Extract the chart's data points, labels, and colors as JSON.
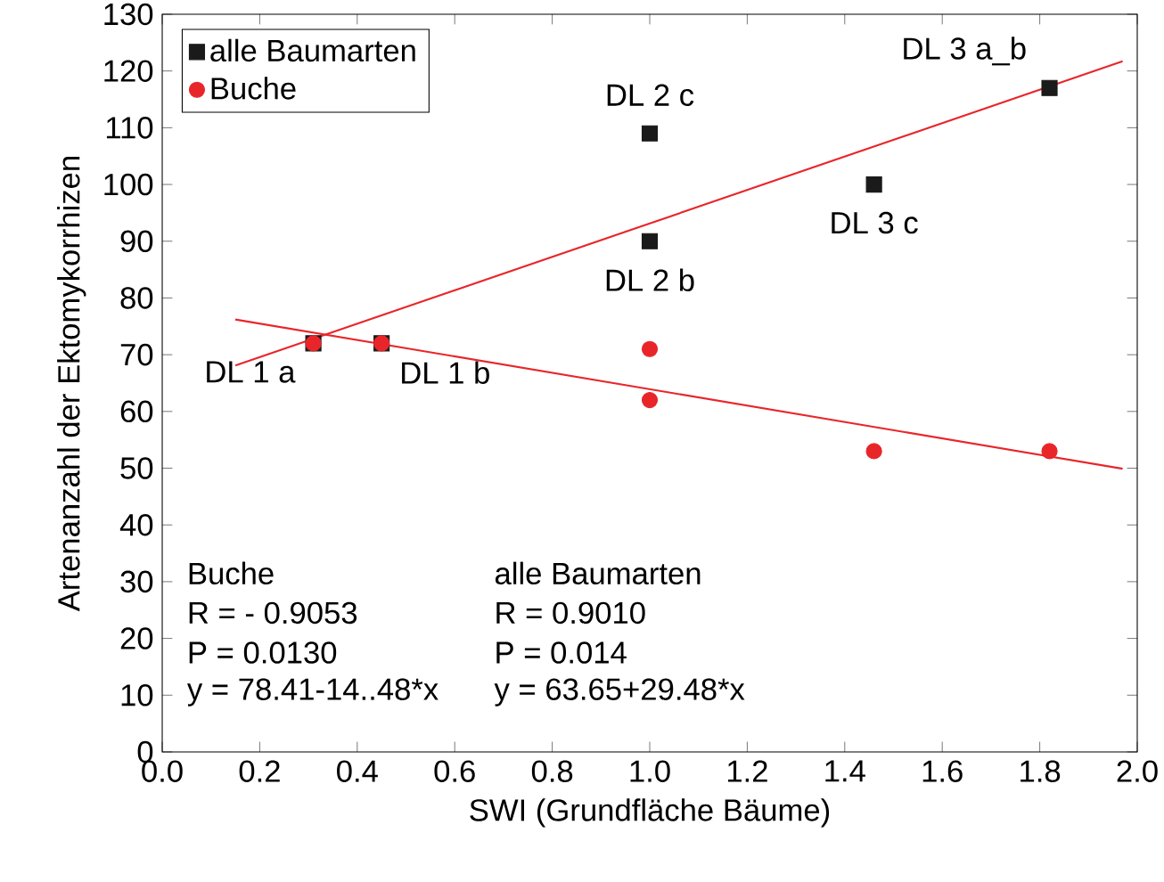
{
  "chart_data": {
    "type": "scatter",
    "xlabel": "SWI (Grundfläche Bäume)",
    "ylabel": "Artenanzahl der Ektomykorrhizen",
    "xlim": [
      0,
      2
    ],
    "ylim": [
      0,
      130
    ],
    "xticks": [
      {
        "value": 0,
        "label": "0.0"
      },
      {
        "value": 0.2,
        "label": "0.2"
      },
      {
        "value": 0.4,
        "label": "0.4"
      },
      {
        "value": 0.6,
        "label": "0.6"
      },
      {
        "value": 0.8,
        "label": "0.8"
      },
      {
        "value": 1.0,
        "label": "1.0"
      },
      {
        "value": 1.2,
        "label": "1.2"
      },
      {
        "value": 1.4,
        "label": "1.4"
      },
      {
        "value": 1.6,
        "label": "1.6"
      },
      {
        "value": 1.8,
        "label": "1.8"
      },
      {
        "value": 2.0,
        "label": "2.0"
      }
    ],
    "yticks": [
      0,
      10,
      20,
      30,
      40,
      50,
      60,
      70,
      80,
      90,
      100,
      110,
      120,
      130
    ],
    "legend": "top left",
    "series": [
      {
        "name": "alle Baumarten",
        "color": "#1a1a1a",
        "marker": "square",
        "x": [
          0.31,
          0.45,
          1.0,
          1.0,
          1.46,
          1.82
        ],
        "values": [
          72,
          72,
          109,
          90,
          100,
          117
        ]
      },
      {
        "name": "Buche",
        "color": "#e8262a",
        "marker": "circle",
        "x": [
          0.31,
          0.45,
          1.0,
          1.0,
          1.46,
          1.82
        ],
        "values": [
          72,
          72,
          71,
          62,
          53,
          53
        ]
      },
      {
        "type": "line",
        "color": "#e8262a",
        "x": [
          0.15,
          1.97
        ],
        "values": [
          76.2,
          49.9
        ]
      },
      {
        "type": "line",
        "color": "#e8262a",
        "x": [
          0.15,
          1.97
        ],
        "values": [
          68.1,
          121.7
        ]
      }
    ],
    "annotations": [
      {
        "text": "DL 1 a",
        "x": 0.31,
        "y": 72
      },
      {
        "text": "DL 1 b",
        "x": 0.45,
        "y": 72
      },
      {
        "text": "DL 2 c",
        "x": 1.0,
        "y": 109
      },
      {
        "text": "DL 2 b",
        "x": 1.0,
        "y": 90
      },
      {
        "text": "DL 3 c",
        "x": 1.46,
        "y": 100
      },
      {
        "text": "DL 3 a_b",
        "x": 1.82,
        "y": 117
      },
      "Buche",
      "R = - 0.9053",
      "P = 0.0130",
      "y = 78.41-14..48*x",
      "alle Baumarten",
      "R = 0.9010",
      "P = 0.014",
      "y = 63.65+29.48*x"
    ]
  }
}
